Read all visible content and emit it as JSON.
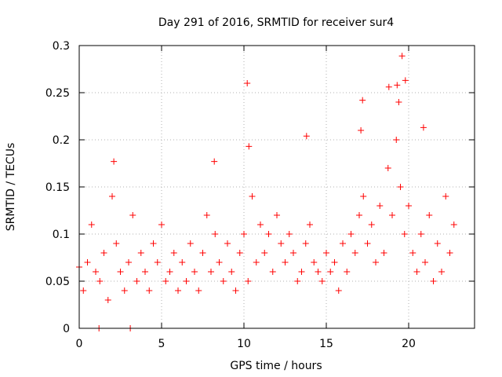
{
  "chart_data": {
    "type": "scatter",
    "title": "Day 291 of 2016, SRMTID for receiver sur4",
    "xlabel": "GPS time / hours",
    "ylabel": "SRMTID / TECUs",
    "xlim": [
      0,
      24
    ],
    "ylim": [
      0,
      0.3
    ],
    "xticks": [
      0,
      5,
      10,
      15,
      20
    ],
    "xtick_labels": [
      "0",
      "5",
      "10",
      "15",
      "20"
    ],
    "yticks": [
      0,
      0.05,
      0.1,
      0.15,
      0.2,
      0.25,
      0.3
    ],
    "ytick_labels": [
      "0",
      "0.05",
      "0.1",
      "0.15",
      "0.2",
      "0.25",
      "0.3"
    ],
    "grid": true,
    "marker": "+",
    "color": "#ff0000",
    "series": [
      {
        "name": "sur4",
        "x": [
          0.0,
          0.25,
          0.5,
          0.75,
          1.0,
          1.25,
          1.5,
          1.75,
          2.0,
          2.25,
          2.5,
          2.75,
          3.0,
          3.25,
          3.5,
          3.75,
          4.0,
          4.25,
          4.5,
          4.75,
          5.0,
          5.25,
          5.5,
          5.75,
          6.0,
          6.25,
          6.5,
          6.75,
          7.0,
          7.25,
          7.5,
          7.75,
          8.0,
          8.25,
          8.5,
          8.75,
          9.0,
          9.25,
          9.5,
          9.75,
          10.0,
          10.25,
          10.5,
          10.75,
          11.0,
          11.25,
          11.5,
          11.75,
          12.0,
          12.25,
          12.5,
          12.75,
          13.0,
          13.25,
          13.5,
          13.75,
          14.0,
          14.25,
          14.5,
          14.75,
          15.0,
          15.25,
          15.5,
          15.75,
          16.0,
          16.25,
          16.5,
          16.75,
          17.0,
          17.25,
          17.5,
          17.75,
          18.0,
          18.25,
          18.5,
          18.75,
          19.0,
          19.25,
          19.5,
          19.75,
          20.0,
          20.25,
          20.5,
          20.75,
          21.0,
          21.25,
          21.5,
          21.75,
          22.0,
          22.25,
          22.5,
          22.75,
          1.2,
          2.1,
          3.1,
          8.2,
          10.2,
          10.3,
          13.8,
          17.2,
          17.1,
          18.8,
          19.3,
          19.6,
          19.8,
          19.4,
          20.9
        ],
        "values": [
          0.065,
          0.04,
          0.07,
          0.11,
          0.06,
          0.05,
          0.08,
          0.03,
          0.14,
          0.09,
          0.06,
          0.04,
          0.07,
          0.12,
          0.05,
          0.08,
          0.06,
          0.04,
          0.09,
          0.07,
          0.11,
          0.05,
          0.06,
          0.08,
          0.04,
          0.07,
          0.05,
          0.09,
          0.06,
          0.04,
          0.08,
          0.12,
          0.06,
          0.1,
          0.07,
          0.05,
          0.09,
          0.06,
          0.04,
          0.08,
          0.1,
          0.05,
          0.14,
          0.07,
          0.11,
          0.08,
          0.1,
          0.06,
          0.12,
          0.09,
          0.07,
          0.1,
          0.08,
          0.05,
          0.06,
          0.09,
          0.11,
          0.07,
          0.06,
          0.05,
          0.08,
          0.06,
          0.07,
          0.04,
          0.09,
          0.06,
          0.1,
          0.08,
          0.12,
          0.14,
          0.09,
          0.11,
          0.07,
          0.13,
          0.08,
          0.17,
          0.12,
          0.2,
          0.15,
          0.1,
          0.13,
          0.08,
          0.06,
          0.1,
          0.07,
          0.12,
          0.05,
          0.09,
          0.06,
          0.14,
          0.08,
          0.11,
          0.0,
          0.177,
          0.0,
          0.177,
          0.26,
          0.193,
          0.204,
          0.242,
          0.21,
          0.256,
          0.258,
          0.289,
          0.263,
          0.24,
          0.213
        ]
      }
    ]
  }
}
